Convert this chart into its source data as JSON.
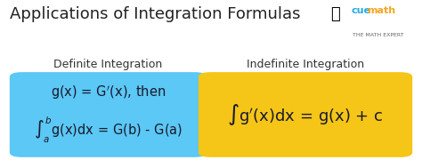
{
  "title": "Applications of Integration Formulas",
  "title_fontsize": 13,
  "title_color": "#222222",
  "background_color": "#ffffff",
  "box1_color": "#5BC8F5",
  "box2_color": "#F5C518",
  "box1_label": "Definite Integration",
  "box2_label": "Indefinite Integration",
  "label_fontsize": 9,
  "formula_fontsize": 10.5,
  "cue_color": "#29ABE2",
  "math_color": "#F5A623",
  "sub_color": "#666666",
  "formula_color": "#1a1a2e"
}
